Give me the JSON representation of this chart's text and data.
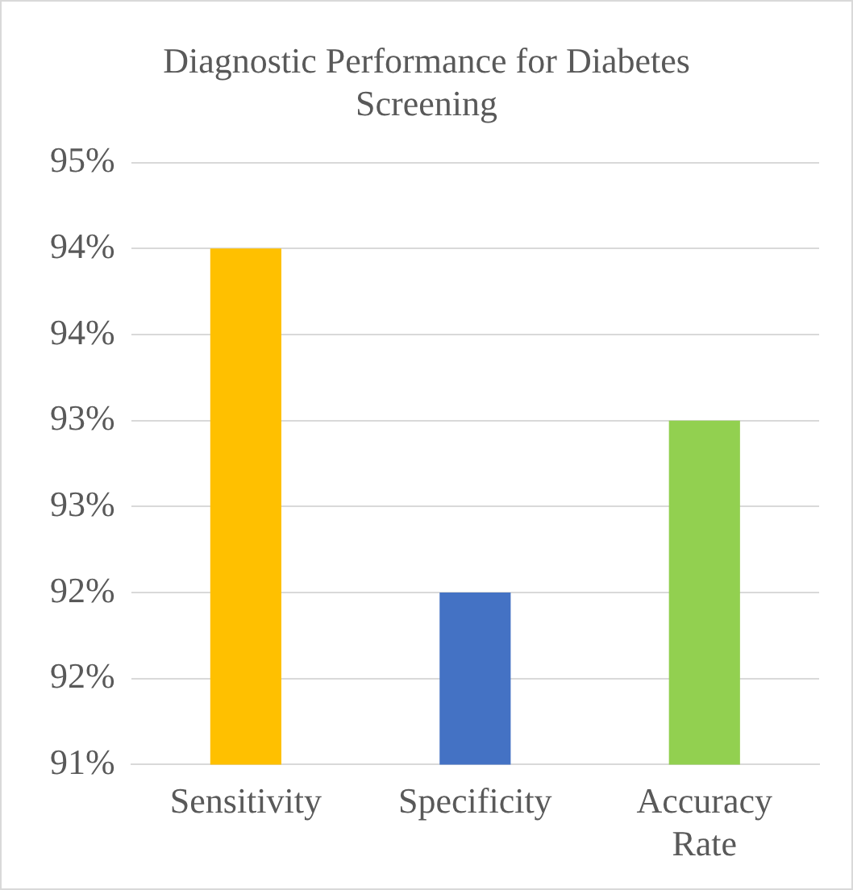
{
  "chart_data": {
    "type": "bar",
    "title": "Diagnostic Performance for Diabetes Screening",
    "categories": [
      "Sensitivity",
      "Specificity",
      "Accuracy Rate"
    ],
    "values": [
      94.0,
      92.0,
      93.0
    ],
    "colors": [
      "#ffc000",
      "#4472c4",
      "#92d050"
    ],
    "ylim": [
      91,
      94.5
    ],
    "yticks": [
      {
        "value": 91,
        "label": "91%"
      },
      {
        "value": 91.5,
        "label": "92%"
      },
      {
        "value": 92,
        "label": "92%"
      },
      {
        "value": 92.5,
        "label": "93%"
      },
      {
        "value": 93,
        "label": "93%"
      },
      {
        "value": 93.5,
        "label": "94%"
      },
      {
        "value": 94,
        "label": "94%"
      },
      {
        "value": 94.5,
        "label": "95%"
      }
    ],
    "grid": "y",
    "legend": false
  }
}
